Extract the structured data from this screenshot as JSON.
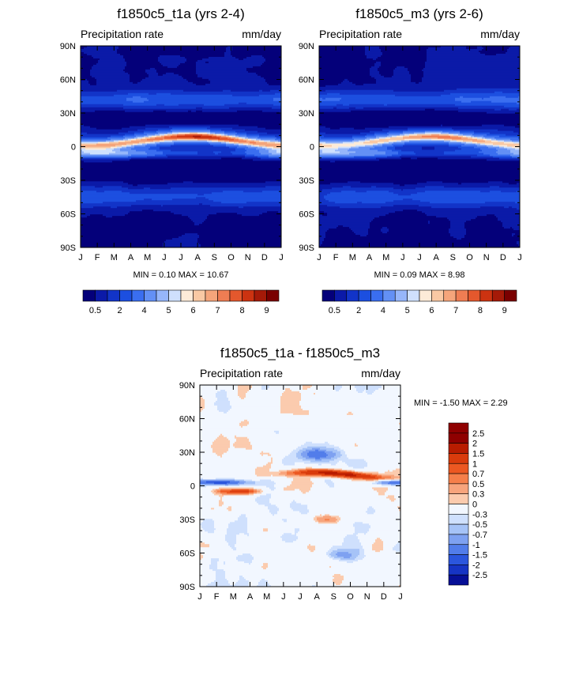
{
  "months": [
    "J",
    "F",
    "M",
    "A",
    "M",
    "J",
    "J",
    "A",
    "S",
    "O",
    "N",
    "D",
    "J"
  ],
  "lat_ticks": [
    "90N",
    "60N",
    "30N",
    "0",
    "30S",
    "60S",
    "90S"
  ],
  "variable_label": "Precipitation rate",
  "units_label": "mm/day",
  "top_colorbar_labels": [
    "0.5",
    "2",
    "4",
    "5",
    "6",
    "7",
    "8",
    "9"
  ],
  "diff_colorbar_labels": [
    "2.5",
    "2",
    "1.5",
    "1",
    "0.7",
    "0.5",
    "0.3",
    "0",
    "-0.3",
    "-0.5",
    "-0.7",
    "-1",
    "-1.5",
    "-2",
    "-2.5"
  ],
  "colors": {
    "seq_palette": [
      "#04007a",
      "#0b1aa8",
      "#1234c8",
      "#1c4fe0",
      "#3a6ef0",
      "#6390f5",
      "#96b6fa",
      "#cfe0fd",
      "#fdebd8",
      "#f9c9a4",
      "#f5a57b",
      "#ef7d53",
      "#e4582d",
      "#cc3311",
      "#a51a08",
      "#7a0000"
    ],
    "div_palette": [
      "#8f0000",
      "#b81c00",
      "#d93b0c",
      "#ec5822",
      "#f57f4a",
      "#f7a47c",
      "#fbcbae",
      "#f2f7ff",
      "#cfe0fd",
      "#a6c3f7",
      "#7ea1f1",
      "#527dea",
      "#2b56dd",
      "#1634c4",
      "#060f96"
    ]
  },
  "chart_data": [
    {
      "type": "heatmap",
      "title": "f1850c5_t1a (yrs 2-4)",
      "left_label": "Precipitation rate",
      "right_label": "mm/day",
      "x_ticks": [
        "J",
        "F",
        "M",
        "A",
        "M",
        "J",
        "J",
        "A",
        "S",
        "O",
        "N",
        "D",
        "J"
      ],
      "y_ticks": [
        "90N",
        "60N",
        "30N",
        "0",
        "30S",
        "60S",
        "90S"
      ],
      "ylim": [
        -90,
        90
      ],
      "stats_text": "MIN =   0.10 MAX =  10.67",
      "min": 0.1,
      "max": 10.67,
      "colorbar_labels": [
        "0.5",
        "2",
        "4",
        "5",
        "6",
        "7",
        "8",
        "9"
      ]
    },
    {
      "type": "heatmap",
      "title": "f1850c5_m3 (yrs 2-6)",
      "left_label": "Precipitation rate",
      "right_label": "mm/day",
      "x_ticks": [
        "J",
        "F",
        "M",
        "A",
        "M",
        "J",
        "J",
        "A",
        "S",
        "O",
        "N",
        "D",
        "J"
      ],
      "y_ticks": [
        "90N",
        "60N",
        "30N",
        "0",
        "30S",
        "60S",
        "90S"
      ],
      "ylim": [
        -90,
        90
      ],
      "stats_text": "MIN =   0.09 MAX =   8.98",
      "min": 0.09,
      "max": 8.98,
      "colorbar_labels": [
        "0.5",
        "2",
        "4",
        "5",
        "6",
        "7",
        "8",
        "9"
      ]
    },
    {
      "type": "heatmap",
      "title": "f1850c5_t1a - f1850c5_m3",
      "left_label": "Precipitation rate",
      "right_label": "mm/day",
      "x_ticks": [
        "J",
        "F",
        "M",
        "A",
        "M",
        "J",
        "J",
        "A",
        "S",
        "O",
        "N",
        "D",
        "J"
      ],
      "y_ticks": [
        "90N",
        "60N",
        "30N",
        "0",
        "30S",
        "60S",
        "90S"
      ],
      "ylim": [
        -90,
        90
      ],
      "stats_text": "MIN =  -1.50 MAX =   2.29",
      "min": -1.5,
      "max": 2.29,
      "colorbar_labels": [
        "2.5",
        "2",
        "1.5",
        "1",
        "0.7",
        "0.5",
        "0.3",
        "0",
        "-0.3",
        "-0.5",
        "-0.7",
        "-1",
        "-1.5",
        "-2",
        "-2.5"
      ]
    }
  ]
}
